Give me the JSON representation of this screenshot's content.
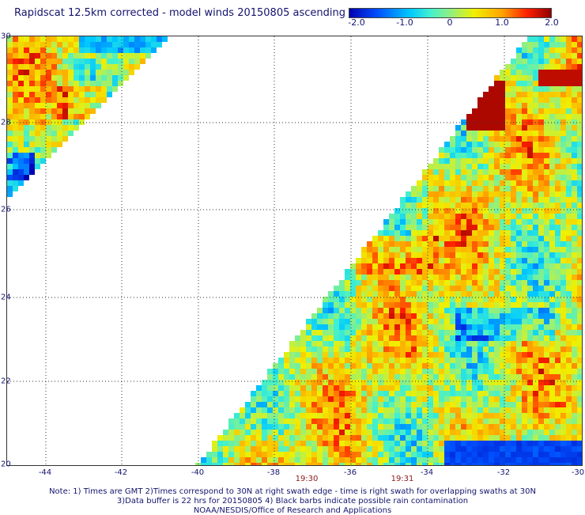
{
  "title": "Rapidscat 12.5km corrected - model winds 20150805 ascending",
  "colorbar": {
    "ticks": [
      "-2.0",
      "-1.0",
      "0",
      "1.0",
      "2.0"
    ]
  },
  "map": {
    "lat_labels": [
      "30",
      "28",
      "26",
      "24",
      "22",
      "20"
    ],
    "lon_labels": [
      "-44",
      "-42",
      "-40",
      "-38",
      "-36",
      "-34",
      "-32",
      "-30"
    ],
    "time_labels": [
      "19:30",
      "19:31"
    ]
  },
  "notes": [
    "Note: 1) Times are GMT 2)Times correspond to 30N at right swath edge - time is right swath for overlapping swaths at 30N",
    "3)Data buffer is 22 hrs for 20150805 4) Black barbs indicate possible rain contamination",
    "NOAA/NESDIS/Office of Research and Applications"
  ],
  "colors": {
    "strong_negative": "#0000b0",
    "neutral": "#90f080",
    "strong_positive": "#900000"
  }
}
